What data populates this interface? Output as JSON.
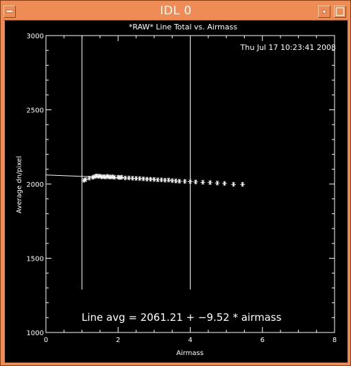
{
  "window": {
    "title": "IDL 0",
    "colors": {
      "frame": "#ef8c55",
      "plot_bg": "#000000",
      "ink": "#ffffff"
    }
  },
  "titlebar_buttons": [
    {
      "icon": "window-menu-icon"
    },
    {
      "icon": "minimize-icon"
    },
    {
      "icon": "maximize-icon"
    }
  ],
  "chart_data": {
    "type": "scatter",
    "title": "*RAW* Line Total vs. Airmass",
    "timestamp": "Thu Jul 17 10:23:41 2008",
    "xlabel": "Airmass",
    "ylabel": "Average dn/pixel",
    "xlim": [
      0,
      8
    ],
    "ylim": [
      1000,
      3000
    ],
    "xticks": [
      0,
      2,
      4,
      6,
      8
    ],
    "yticks": [
      1000,
      1500,
      2000,
      2500,
      3000
    ],
    "grid": false,
    "marker": "asterisk",
    "points": {
      "x": [
        1.05,
        1.1,
        1.2,
        1.3,
        1.35,
        1.4,
        1.45,
        1.5,
        1.55,
        1.6,
        1.65,
        1.7,
        1.75,
        1.8,
        1.85,
        1.9,
        2.0,
        2.05,
        2.1,
        2.2,
        2.3,
        2.4,
        2.5,
        2.6,
        2.7,
        2.8,
        2.9,
        3.0,
        3.1,
        3.2,
        3.3,
        3.4,
        3.5,
        3.6,
        3.7,
        3.85,
        4.0,
        4.15,
        4.35,
        4.55,
        4.75,
        4.95,
        5.2,
        5.45
      ],
      "y": [
        2025,
        2030,
        2040,
        2045,
        2050,
        2055,
        2052,
        2053,
        2048,
        2050,
        2047,
        2052,
        2048,
        2047,
        2049,
        2045,
        2046,
        2044,
        2046,
        2041,
        2041,
        2039,
        2038,
        2037,
        2035,
        2033,
        2032,
        2031,
        2028,
        2028,
        2026,
        2027,
        2023,
        2021,
        2019,
        2018,
        2016,
        2014,
        2012,
        2010,
        2007,
        2004,
        1998,
        1998
      ]
    },
    "fit_line": {
      "intercept": 2061.21,
      "slope": -9.52,
      "x_range": [
        0,
        3.0
      ]
    },
    "vertical_lines": [
      {
        "x": 1.0,
        "y_range": [
          1290,
          3000
        ]
      },
      {
        "x": 4.0,
        "y_range": [
          1290,
          3000
        ]
      }
    ],
    "annotation": "Line avg = 2061.21 + −9.52 * airmass"
  }
}
